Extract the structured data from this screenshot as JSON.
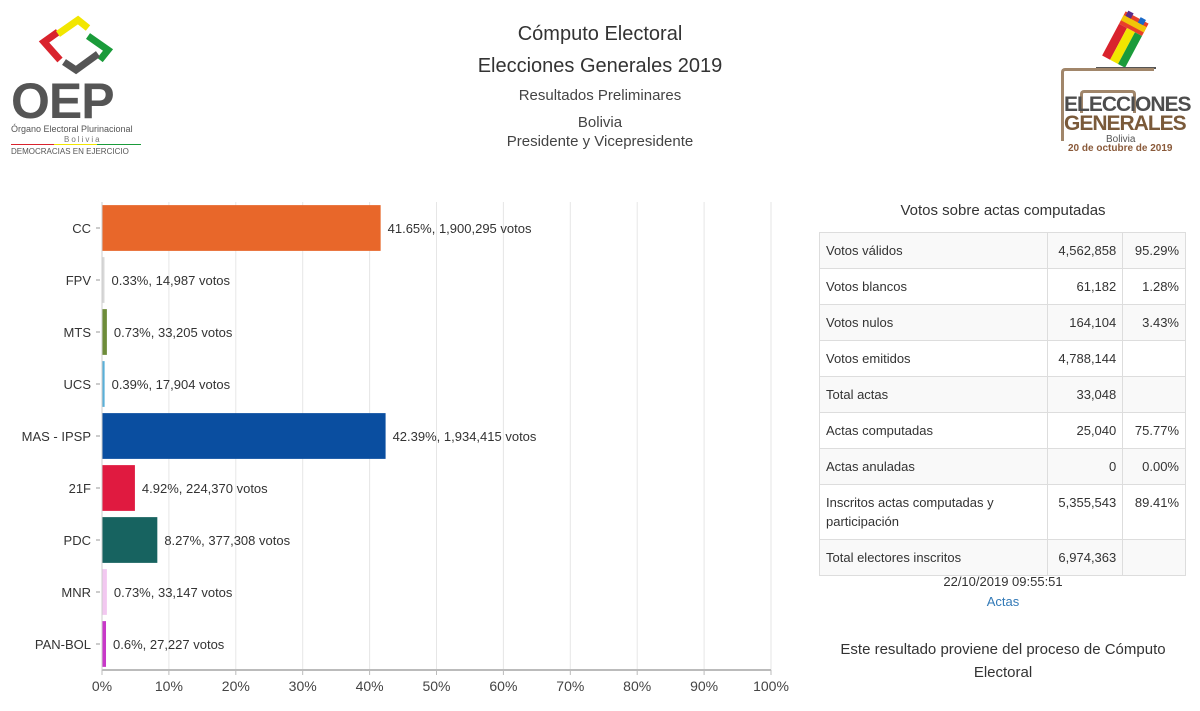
{
  "header": {
    "title": "Cómputo Electoral",
    "subtitle": "Elecciones Generales 2019",
    "status": "Resultados Preliminares",
    "country": "Bolivia",
    "office": "Presidente y Vicepresidente"
  },
  "logos": {
    "oep": {
      "acronym": "OEP",
      "name": "Órgano Electoral Plurinacional",
      "country": "Bolivia",
      "slogan": "DEMOCRACIAS EN EJERCICIO"
    },
    "elecciones": {
      "line1": "ELECCIONES",
      "line2": "GENERALES",
      "country": "Bolivia",
      "date": "20 de octubre de 2019"
    }
  },
  "chart_data": {
    "type": "bar",
    "orientation": "horizontal",
    "categories": [
      "CC",
      "FPV",
      "MTS",
      "UCS",
      "MAS - IPSP",
      "21F",
      "PDC",
      "MNR",
      "PAN-BOL"
    ],
    "values": [
      41.65,
      0.33,
      0.73,
      0.39,
      42.39,
      4.92,
      8.27,
      0.73,
      0.6
    ],
    "votes": [
      "1,900,295",
      "14,987",
      "33,205",
      "17,904",
      "1,934,415",
      "224,370",
      "377,308",
      "33,147",
      "27,227"
    ],
    "labels": [
      "41.65%,  1,900,295 votos",
      "0.33%,  14,987 votos",
      "0.73%,  33,205 votos",
      "0.39%,  17,904 votos",
      "42.39%,  1,934,415 votos",
      "4.92%,  224,370 votos",
      "8.27%,  377,308 votos",
      "0.73%,  33,147 votos",
      "0.6%,  27,227 votos"
    ],
    "colors": [
      "#e8672a",
      "#d8d8d8",
      "#6e8c3a",
      "#5ab0d8",
      "#0a4ea0",
      "#e01a40",
      "#176360",
      "#f2c8f0",
      "#c838c8"
    ],
    "xlim": [
      0,
      100
    ],
    "xticks": [
      "0%",
      "10%",
      "20%",
      "30%",
      "40%",
      "50%",
      "60%",
      "70%",
      "80%",
      "90%",
      "100%"
    ],
    "title": "",
    "xlabel": "",
    "ylabel": "",
    "grid": true
  },
  "summary": {
    "title": "Votos sobre actas computadas",
    "rows": [
      {
        "label": "Votos válidos",
        "value": "4,562,858",
        "pct": "95.29%"
      },
      {
        "label": "Votos blancos",
        "value": "61,182",
        "pct": "1.28%"
      },
      {
        "label": "Votos nulos",
        "value": "164,104",
        "pct": "3.43%"
      },
      {
        "label": "Votos emitidos",
        "value": "4,788,144",
        "pct": ""
      },
      {
        "label": "Total actas",
        "value": "33,048",
        "pct": ""
      },
      {
        "label": "Actas computadas",
        "value": "25,040",
        "pct": "75.77%"
      },
      {
        "label": "Actas anuladas",
        "value": "0",
        "pct": "0.00%"
      },
      {
        "label": "Inscritos actas computadas y participación",
        "value": "5,355,543",
        "pct": "89.41%"
      },
      {
        "label": "Total electores inscritos",
        "value": "6,974,363",
        "pct": ""
      }
    ],
    "timestamp": "22/10/2019 09:55:51",
    "link_label": "Actas",
    "note": "Este resultado proviene del proceso de Cómputo Electoral"
  }
}
